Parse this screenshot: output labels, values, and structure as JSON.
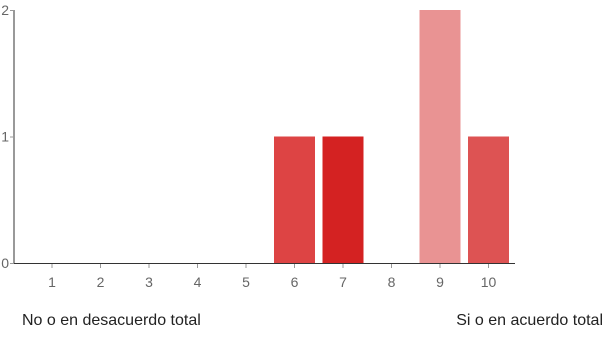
{
  "chart_data": {
    "type": "bar",
    "categories": [
      "1",
      "2",
      "3",
      "4",
      "5",
      "6",
      "7",
      "8",
      "9",
      "10"
    ],
    "values": [
      0,
      0,
      0,
      0,
      0,
      1,
      1,
      0,
      2,
      1
    ],
    "bar_colors": [
      "#db4437",
      "#db4437",
      "#db4437",
      "#db4437",
      "#db4437",
      "#dd4444",
      "#d42222",
      "#db4437",
      "#e99393",
      "#dd5353"
    ],
    "yticks": [
      "0",
      "1",
      "2"
    ],
    "ylim": [
      0,
      2
    ],
    "grid": false,
    "axis_color": "#333333",
    "tick_color": "#999999"
  },
  "scale_labels": {
    "low": "No o en desacuerdo total",
    "high": "Si o en acuerdo total"
  }
}
